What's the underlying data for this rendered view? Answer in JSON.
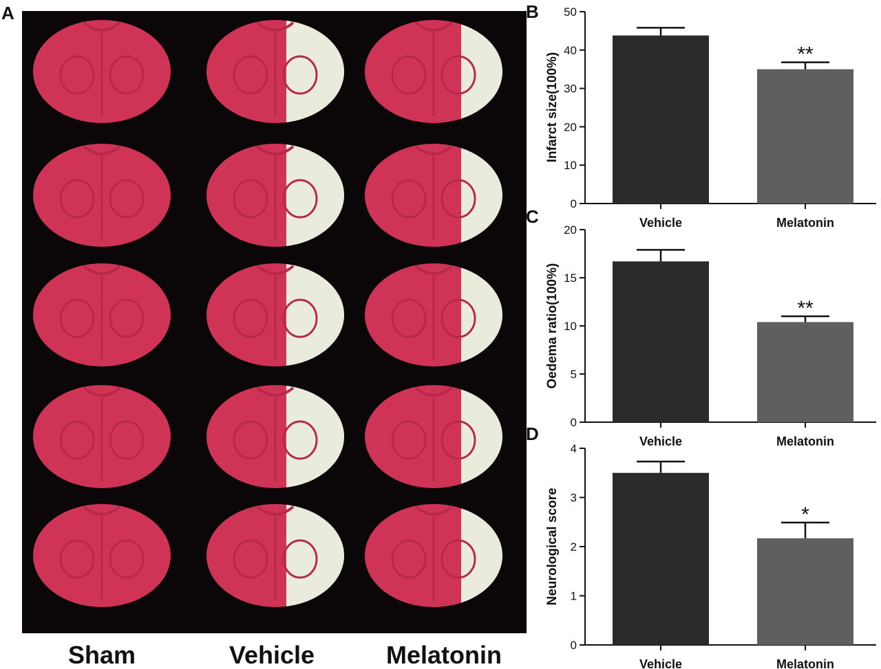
{
  "panel_a": {
    "letter": "A",
    "groups": [
      "Sham",
      "Vehicle",
      "Melatonin"
    ],
    "slices_per_group": 5,
    "colors": {
      "background": "#0b0708",
      "tissue": "#cf3355",
      "tissue_shade": "#b8284a",
      "infarct": "#e9ecdc"
    },
    "infarct_fraction": [
      0,
      0.42,
      0.3
    ]
  },
  "chart_data": [
    {
      "letter": "B",
      "type": "bar",
      "categories": [
        "Vehicle",
        "Melatonin"
      ],
      "values": [
        43.8,
        35.0
      ],
      "errors": [
        2.0,
        1.8
      ],
      "significance": [
        "",
        "**"
      ],
      "ylabel": "Infarct size(100%)",
      "ylim": [
        0,
        50
      ],
      "yticks": [
        0,
        10,
        20,
        30,
        40,
        50
      ],
      "colors": [
        "#2b2b2b",
        "#5f5f5f"
      ]
    },
    {
      "letter": "C",
      "type": "bar",
      "categories": [
        "Vehicle",
        "Melatonin"
      ],
      "values": [
        16.7,
        10.4
      ],
      "errors": [
        1.2,
        0.6
      ],
      "significance": [
        "",
        "**"
      ],
      "ylabel": "Oedema ratio(100%)",
      "ylim": [
        0,
        20
      ],
      "yticks": [
        0,
        5,
        10,
        15,
        20
      ],
      "colors": [
        "#2b2b2b",
        "#5f5f5f"
      ]
    },
    {
      "letter": "D",
      "type": "bar",
      "categories": [
        "Vehicle",
        "Melatonin"
      ],
      "values": [
        3.5,
        2.17
      ],
      "errors": [
        0.23,
        0.32
      ],
      "significance": [
        "",
        "*"
      ],
      "ylabel": "Neurological score",
      "ylim": [
        0,
        4
      ],
      "yticks": [
        0,
        1,
        2,
        3,
        4
      ],
      "colors": [
        "#2b2b2b",
        "#5f5f5f"
      ]
    }
  ]
}
